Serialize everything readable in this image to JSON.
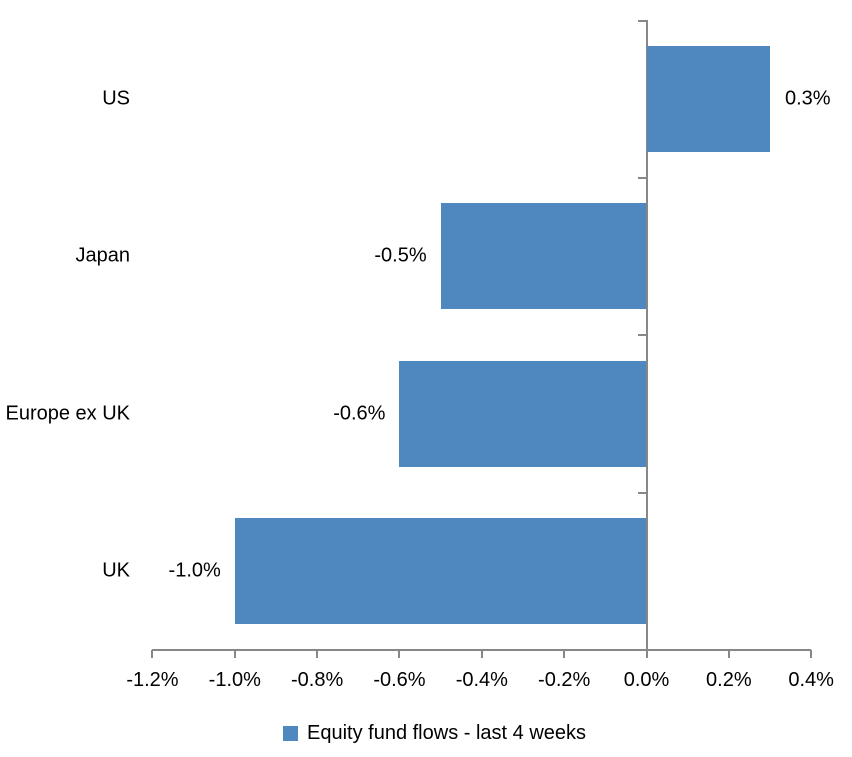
{
  "chart_data": {
    "type": "bar",
    "orientation": "horizontal",
    "title": "",
    "categories": [
      "US",
      "Japan",
      "Europe ex UK",
      "UK"
    ],
    "values": [
      0.3,
      -0.5,
      -0.6,
      -1.0
    ],
    "value_labels": [
      "0.3%",
      "-0.5%",
      "-0.6%",
      "-1.0%"
    ],
    "series_name": "Equity fund flows - last 4 weeks",
    "unit": "%",
    "x_axis": {
      "min": -1.2,
      "max": 0.4,
      "step": 0.2,
      "tick_labels": [
        "-1.2%",
        "-1.0%",
        "-0.8%",
        "-0.6%",
        "-0.4%",
        "-0.2%",
        "0.0%",
        "0.2%",
        "0.4%"
      ]
    },
    "ylabel": "",
    "xlabel": "",
    "legend_position": "bottom",
    "grid": false,
    "colors": {
      "bar": "#4E88BE",
      "axis": "#878787",
      "text": "#000000",
      "background": "#FFFFFF"
    }
  }
}
